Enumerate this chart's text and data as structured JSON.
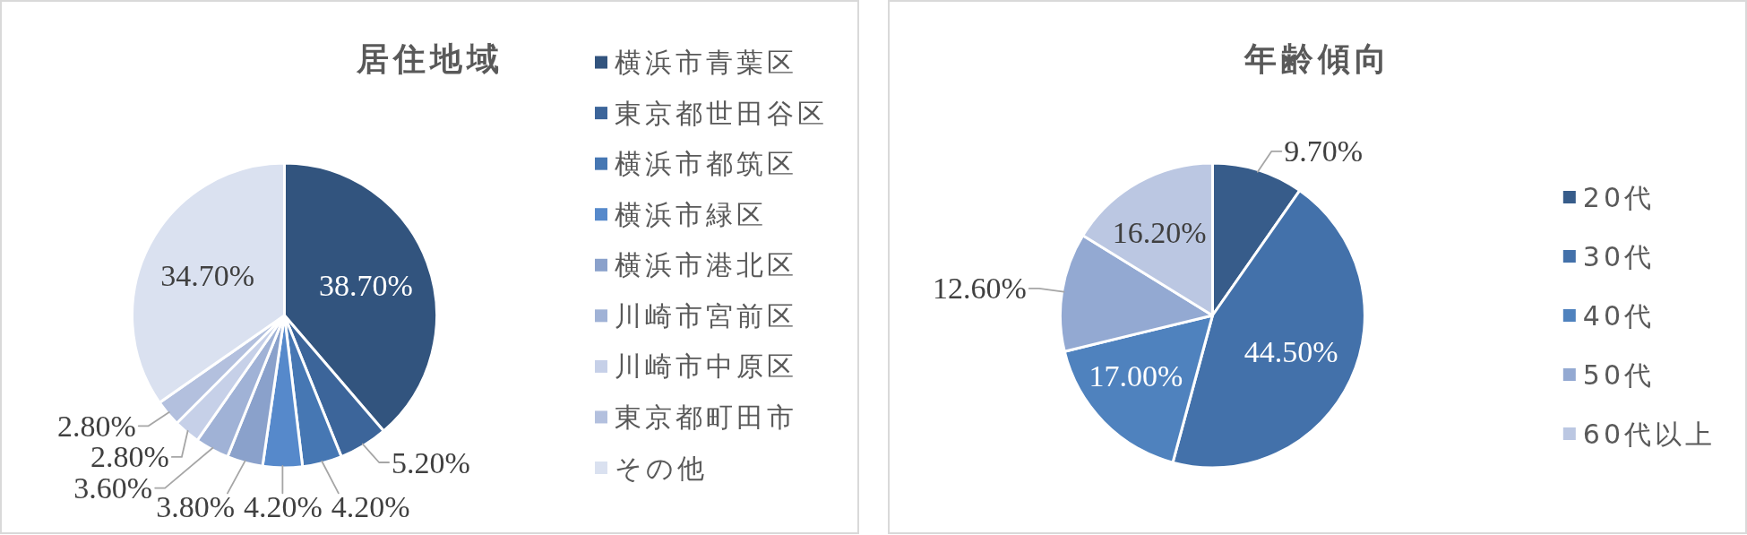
{
  "chart_data": [
    {
      "type": "pie",
      "title": "居住地域",
      "categories": [
        "横浜市青葉区",
        "東京都世田谷区",
        "横浜市都筑区",
        "横浜市緑区",
        "横浜市港北区",
        "川崎市宮前区",
        "川崎市中原区",
        "東京都町田市",
        "その他"
      ],
      "values": [
        38.7,
        5.2,
        4.2,
        4.2,
        3.8,
        3.6,
        2.8,
        2.8,
        34.7
      ],
      "colors": [
        "#32547e",
        "#3c659a",
        "#4677b3",
        "#5689cb",
        "#8aa1cb",
        "#a0b2d6",
        "#c6d0e8",
        "#b3c0de",
        "#dae1f0"
      ],
      "value_labels": [
        "38.70%",
        "5.20%",
        "4.20%",
        "4.20%",
        "3.80%",
        "3.60%",
        "2.80%",
        "2.80%",
        "34.70%"
      ],
      "legend": "right"
    },
    {
      "type": "pie",
      "title": "年齢傾向",
      "categories": [
        "20代",
        "30代",
        "40代",
        "50代",
        "60代以上"
      ],
      "values": [
        9.7,
        44.5,
        17.0,
        12.6,
        16.2
      ],
      "colors": [
        "#375c8a",
        "#4371aa",
        "#4f82be",
        "#93a9d2",
        "#bbc7e2"
      ],
      "value_labels": [
        "9.70%",
        "44.50%",
        "17.00%",
        "12.60%",
        "16.20%"
      ],
      "legend": "right"
    }
  ]
}
